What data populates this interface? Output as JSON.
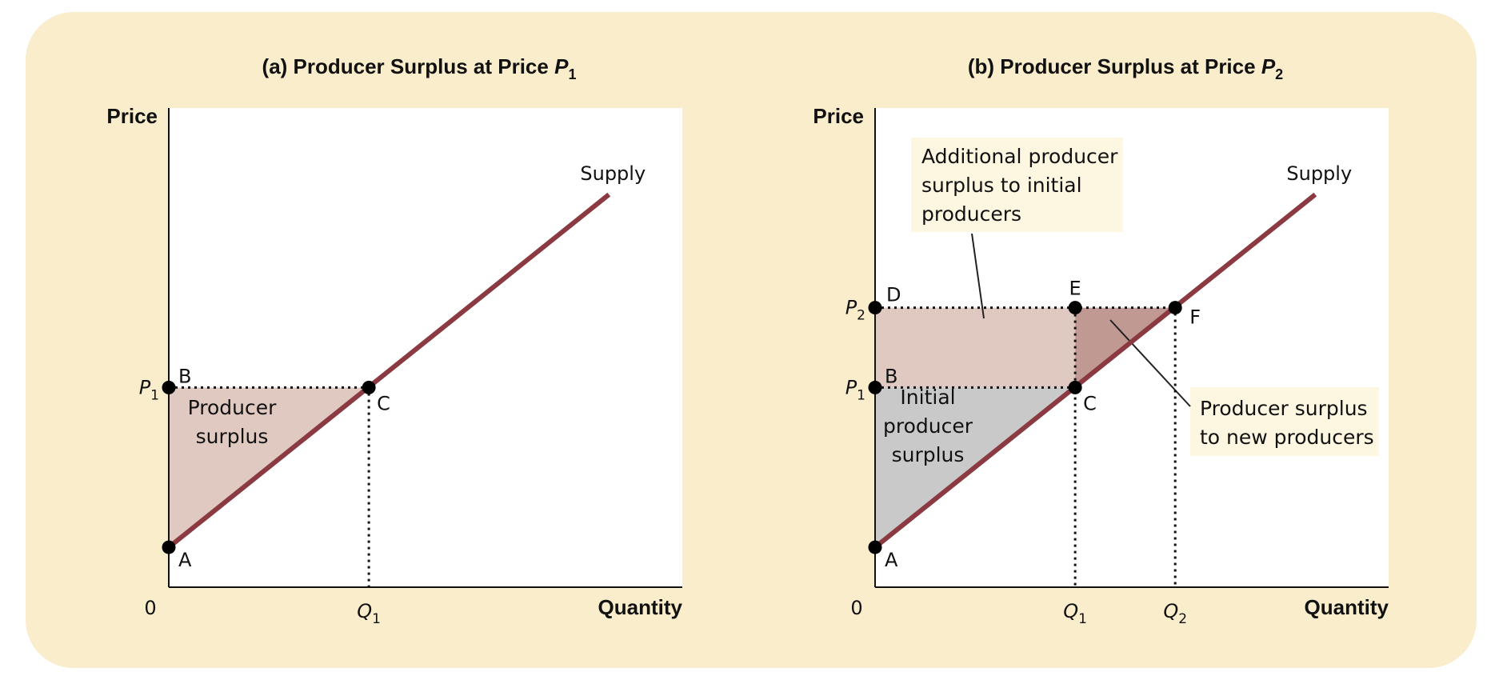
{
  "figure": {
    "panels": [
      {
        "title_prefix": "(a)  Producer Surplus at Price ",
        "title_var": "P",
        "title_sub": "1",
        "y_axis_label": "Price",
        "x_axis_label": "Quantity",
        "origin_label": "0",
        "supply_label": "Supply",
        "price_ticks": [
          {
            "var": "P",
            "sub": "1",
            "price": 3
          }
        ],
        "quantity_ticks": [
          {
            "var": "Q",
            "sub": "1",
            "quantity": 3
          }
        ],
        "points": [
          {
            "label": "A",
            "quantity": 0,
            "price": 0.6
          },
          {
            "label": "B",
            "quantity": 0,
            "price": 3
          },
          {
            "label": "C",
            "quantity": 3,
            "price": 3
          }
        ],
        "regions": [
          {
            "name": "producer-surplus",
            "lines": [
              "Producer",
              "surplus"
            ],
            "color": "#dfc9c1"
          }
        ]
      },
      {
        "title_prefix": "(b) Producer Surplus at Price ",
        "title_var": "P",
        "title_sub": "2",
        "y_axis_label": "Price",
        "x_axis_label": "Quantity",
        "origin_label": "0",
        "supply_label": "Supply",
        "price_ticks": [
          {
            "var": "P",
            "sub": "2",
            "price": 4.2
          },
          {
            "var": "P",
            "sub": "1",
            "price": 3
          }
        ],
        "quantity_ticks": [
          {
            "var": "Q",
            "sub": "1",
            "quantity": 3
          },
          {
            "var": "Q",
            "sub": "2",
            "quantity": 4.5
          }
        ],
        "points": [
          {
            "label": "A",
            "quantity": 0,
            "price": 0.6
          },
          {
            "label": "B",
            "quantity": 0,
            "price": 3
          },
          {
            "label": "C",
            "quantity": 3,
            "price": 3
          },
          {
            "label": "D",
            "quantity": 0,
            "price": 4.2
          },
          {
            "label": "E",
            "quantity": 3,
            "price": 4.2
          },
          {
            "label": "F",
            "quantity": 4.5,
            "price": 4.2
          }
        ],
        "regions": [
          {
            "name": "initial-producer-surplus",
            "lines": [
              "Initial",
              "producer",
              "surplus"
            ],
            "color": "#c9c9c9"
          },
          {
            "name": "additional-producer-surplus",
            "lines": [
              "Additional producer",
              "surplus to initial",
              "producers"
            ],
            "color": "#dfc9c1"
          },
          {
            "name": "new-producers-surplus",
            "lines": [
              "Producer surplus",
              "to new producers"
            ],
            "color": "#c09a92"
          }
        ]
      }
    ]
  },
  "chart_data": [
    {
      "type": "line",
      "title": "(a) Producer Surplus at Price P1",
      "xlabel": "Quantity",
      "ylabel": "Price",
      "xlim": [
        0,
        7.7
      ],
      "ylim": [
        0,
        7.2
      ],
      "grid": false,
      "series": [
        {
          "name": "Supply",
          "x": [
            0,
            6.6
          ],
          "y": [
            0.6,
            5.9
          ],
          "color": "#8b3a42"
        }
      ],
      "annotations": [
        "Producer surplus",
        "A",
        "B",
        "C"
      ]
    },
    {
      "type": "line",
      "title": "(b) Producer Surplus at Price P2",
      "xlabel": "Quantity",
      "ylabel": "Price",
      "xlim": [
        0,
        7.7
      ],
      "ylim": [
        0,
        7.2
      ],
      "grid": false,
      "series": [
        {
          "name": "Supply",
          "x": [
            0,
            6.6
          ],
          "y": [
            0.6,
            5.9
          ],
          "color": "#8b3a42"
        }
      ],
      "annotations": [
        "Initial producer surplus",
        "Additional producer surplus to initial producers",
        "Producer surplus to new producers",
        "A",
        "B",
        "C",
        "D",
        "E",
        "F"
      ]
    }
  ]
}
